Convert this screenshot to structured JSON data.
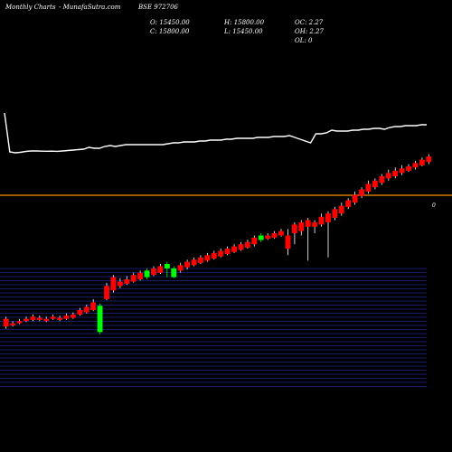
{
  "header": {
    "title": "Monthly Charts",
    "source": "- MunafaSutra.com",
    "symbol": "BSE 972706",
    "open": "O: 15450.00",
    "close": "C: 15800.00",
    "high": "H: 15800.00",
    "low": "L: 15450.00",
    "oc": "OC: 2.27",
    "oh": "OH: 2.27",
    "ol": "OL: 0"
  },
  "volume_label": "0",
  "colors": {
    "up": "#00ff00",
    "down": "#ff0000",
    "line": "#ffffff",
    "divider": "#cc7a00",
    "grid": "#2a3ad0"
  },
  "chart_data": [
    {
      "type": "line",
      "description_scale": "unlabeled",
      "x": [
        0,
        1,
        2,
        3,
        4,
        5,
        6,
        7,
        8,
        9,
        10,
        11,
        12,
        13,
        14,
        15,
        16,
        17,
        18,
        19,
        20,
        21,
        22,
        23,
        24,
        25,
        26,
        27,
        28,
        29,
        30,
        31,
        32,
        33,
        34,
        35,
        36,
        37,
        38,
        39,
        40,
        41,
        42,
        43,
        44,
        45,
        46,
        47,
        48,
        49,
        50,
        51,
        52,
        53,
        54,
        55,
        56,
        57,
        58,
        59,
        60,
        61,
        62,
        63,
        64,
        65,
        66,
        67,
        68,
        69,
        70,
        71,
        72,
        73,
        74,
        75,
        76,
        77,
        78,
        79,
        80
      ],
      "y": [
        45,
        2,
        1,
        1.5,
        2.5,
        3,
        3,
        2.8,
        2.7,
        2.8,
        2.6,
        3,
        3.5,
        4,
        4.5,
        5,
        7,
        6,
        6,
        8,
        9,
        8,
        9,
        10,
        10,
        10,
        10,
        10,
        10,
        10,
        10,
        11,
        12,
        12,
        13,
        13,
        13,
        14,
        14,
        15,
        15,
        15,
        16,
        16,
        17,
        17,
        17,
        17,
        18,
        18,
        18,
        19,
        19,
        19,
        20,
        18,
        16,
        14,
        12,
        22,
        22,
        23,
        26,
        25,
        25,
        25,
        26,
        26,
        27,
        27,
        28,
        28,
        27,
        29,
        30,
        30,
        31,
        31,
        31,
        32,
        32
      ]
    },
    {
      "type": "bar",
      "description_scale": "unlabeled",
      "values": [
        0,
        0,
        0,
        0,
        0,
        0,
        0,
        0,
        0,
        0,
        0,
        0,
        0,
        0,
        0,
        0,
        0,
        0,
        0,
        0,
        0,
        0,
        0,
        0,
        0,
        0,
        0,
        0,
        0,
        0,
        0,
        0,
        0,
        0,
        0,
        0,
        0,
        0,
        0,
        0,
        0,
        0,
        0,
        0,
        0,
        0,
        0,
        0,
        0,
        0,
        0,
        0,
        0,
        0,
        0,
        0,
        0,
        0,
        0,
        0,
        0,
        0,
        0,
        0,
        0,
        0,
        0,
        0,
        0,
        0,
        0,
        0,
        0,
        0,
        0,
        0,
        0,
        0,
        0,
        0,
        0
      ]
    },
    {
      "type": "candlestick",
      "description_scale": "unlabeled",
      "candles": [
        [
          0,
          62,
          55,
          64,
          53
        ],
        [
          1,
          58,
          56,
          60,
          55
        ],
        [
          2,
          60,
          58,
          62,
          57
        ],
        [
          3,
          62,
          60,
          64,
          59
        ],
        [
          4,
          64,
          61,
          66,
          60
        ],
        [
          5,
          63,
          61,
          65,
          60
        ],
        [
          6,
          62,
          60,
          64,
          59
        ],
        [
          7,
          64,
          62,
          66,
          61
        ],
        [
          8,
          63,
          61,
          65,
          60
        ],
        [
          9,
          65,
          62,
          67,
          61
        ],
        [
          10,
          66,
          63,
          68,
          62
        ],
        [
          11,
          70,
          66,
          72,
          65
        ],
        [
          12,
          73,
          68,
          75,
          67
        ],
        [
          13,
          77,
          70,
          80,
          69
        ],
        [
          14,
          50,
          74,
          76,
          48
        ],
        [
          15,
          92,
          80,
          95,
          79
        ],
        [
          16,
          100,
          88,
          102,
          86
        ],
        [
          17,
          96,
          92,
          99,
          90
        ],
        [
          18,
          98,
          94,
          101,
          93
        ],
        [
          19,
          102,
          96,
          104,
          95
        ],
        [
          20,
          104,
          98,
          106,
          97
        ],
        [
          21,
          100,
          106,
          108,
          98
        ],
        [
          22,
          108,
          102,
          110,
          101
        ],
        [
          23,
          110,
          104,
          112,
          103
        ],
        [
          24,
          108,
          112,
          114,
          100
        ],
        [
          25,
          100,
          108,
          110,
          99
        ],
        [
          26,
          111,
          106,
          113,
          104
        ],
        [
          27,
          114,
          109,
          116,
          107
        ],
        [
          28,
          116,
          111,
          118,
          110
        ],
        [
          29,
          118,
          113,
          120,
          112
        ],
        [
          30,
          120,
          115,
          122,
          114
        ],
        [
          31,
          122,
          117,
          124,
          116
        ],
        [
          32,
          124,
          119,
          126,
          118
        ],
        [
          33,
          126,
          121,
          128,
          120
        ],
        [
          34,
          128,
          123,
          130,
          122
        ],
        [
          35,
          130,
          125,
          132,
          124
        ],
        [
          36,
          132,
          127,
          134,
          126
        ],
        [
          37,
          136,
          130,
          138,
          128
        ],
        [
          38,
          134,
          138,
          140,
          132
        ],
        [
          39,
          138,
          135,
          140,
          134
        ],
        [
          40,
          140,
          136,
          142,
          135
        ],
        [
          41,
          142,
          138,
          144,
          137
        ],
        [
          42,
          138,
          126,
          144,
          120
        ],
        [
          43,
          148,
          140,
          150,
          130
        ],
        [
          44,
          150,
          142,
          152,
          138
        ],
        [
          45,
          152,
          146,
          154,
          115
        ],
        [
          46,
          150,
          146,
          152,
          140
        ],
        [
          47,
          155,
          148,
          158,
          146
        ],
        [
          48,
          158,
          150,
          160,
          118
        ],
        [
          49,
          162,
          154,
          164,
          152
        ],
        [
          50,
          165,
          158,
          168,
          156
        ],
        [
          51,
          170,
          164,
          172,
          162
        ],
        [
          52,
          175,
          168,
          178,
          166
        ],
        [
          53,
          180,
          174,
          182,
          172
        ],
        [
          54,
          185,
          178,
          188,
          176
        ],
        [
          55,
          188,
          182,
          190,
          180
        ],
        [
          56,
          192,
          186,
          194,
          184
        ],
        [
          57,
          195,
          190,
          198,
          188
        ],
        [
          58,
          197,
          192,
          200,
          190
        ],
        [
          59,
          199,
          195,
          202,
          193
        ],
        [
          60,
          201,
          197,
          203,
          196
        ],
        [
          61,
          204,
          200,
          206,
          198
        ],
        [
          62,
          207,
          202,
          209,
          201
        ],
        [
          63,
          210,
          205,
          212,
          203
        ]
      ]
    }
  ]
}
